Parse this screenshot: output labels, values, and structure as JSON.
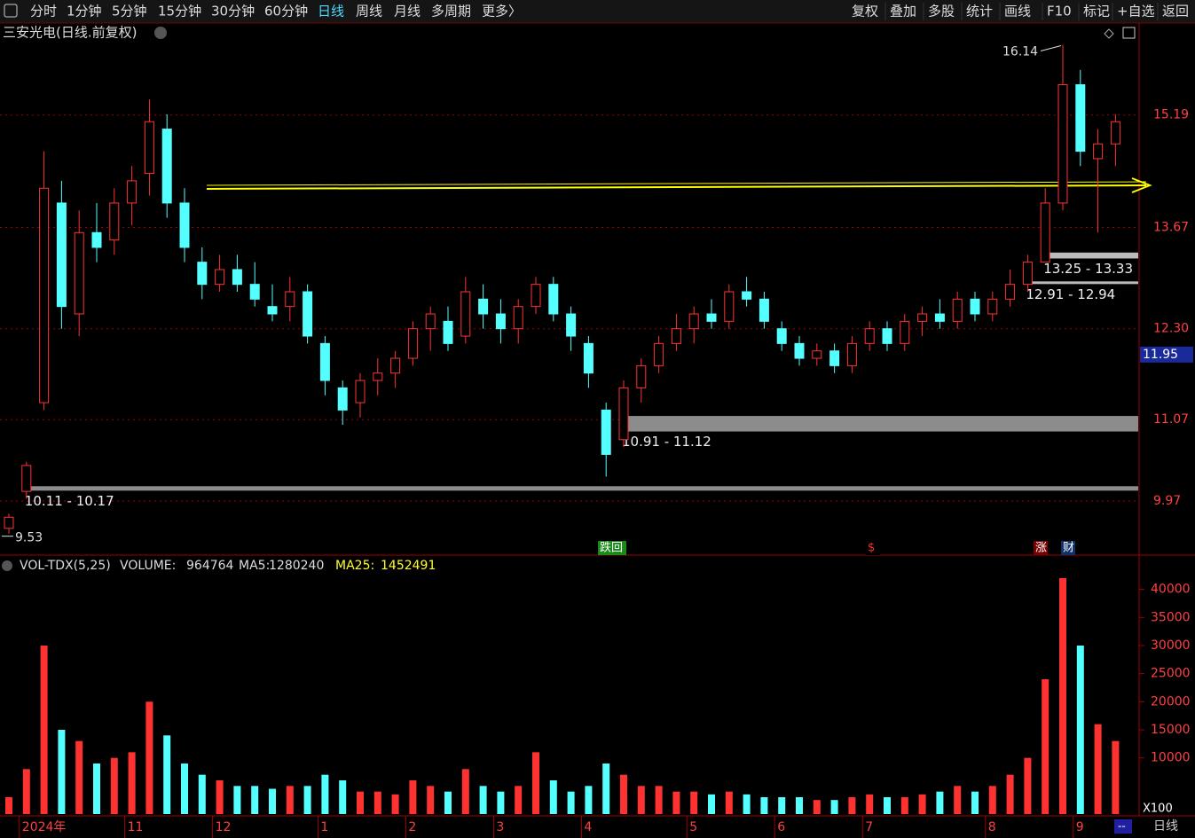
{
  "toolbar": {
    "left": [
      "分时",
      "1分钟",
      "5分钟",
      "15分钟",
      "30分钟",
      "60分钟",
      "日线",
      "周线",
      "月线",
      "多周期",
      "更多〉"
    ],
    "right": [
      "复权",
      "叠加",
      "多股",
      "统计",
      "画线",
      "F10",
      "标记",
      "+自选",
      "返回"
    ]
  },
  "footer": {
    "period": "日线",
    "scroll": "--"
  },
  "chart_data": [
    {
      "type": "candlestick",
      "title": "三安光电(日线.前复权)",
      "categories": [
        null,
        "2024年",
        null,
        null,
        null,
        null,
        null,
        "11",
        null,
        null,
        null,
        null,
        "12",
        null,
        null,
        null,
        null,
        null,
        "1",
        null,
        null,
        null,
        null,
        "2",
        null,
        null,
        null,
        null,
        "3",
        null,
        null,
        null,
        null,
        "4",
        null,
        null,
        null,
        null,
        null,
        "5",
        null,
        null,
        null,
        null,
        "6",
        null,
        null,
        null,
        null,
        "7",
        null,
        null,
        null,
        null,
        null,
        null,
        "8",
        null,
        null,
        null,
        null,
        "9",
        null,
        null
      ],
      "ohlc": [
        [
          9.6,
          9.8,
          9.53,
          9.75
        ],
        [
          10.1,
          10.5,
          10.0,
          10.45
        ],
        [
          11.3,
          14.7,
          11.2,
          14.2
        ],
        [
          14.0,
          14.3,
          12.3,
          12.6
        ],
        [
          12.5,
          13.9,
          12.2,
          13.6
        ],
        [
          13.6,
          14.0,
          13.2,
          13.4
        ],
        [
          13.5,
          14.2,
          13.3,
          14.0
        ],
        [
          14.0,
          14.5,
          13.7,
          14.3
        ],
        [
          14.4,
          15.4,
          14.1,
          15.1
        ],
        [
          15.0,
          15.2,
          13.8,
          14.0
        ],
        [
          14.0,
          14.2,
          13.2,
          13.4
        ],
        [
          13.2,
          13.4,
          12.7,
          12.9
        ],
        [
          12.9,
          13.3,
          12.8,
          13.1
        ],
        [
          13.1,
          13.3,
          12.8,
          12.9
        ],
        [
          12.9,
          13.2,
          12.6,
          12.7
        ],
        [
          12.6,
          12.9,
          12.4,
          12.5
        ],
        [
          12.6,
          13.0,
          12.4,
          12.8
        ],
        [
          12.8,
          12.9,
          12.1,
          12.2
        ],
        [
          12.1,
          12.2,
          11.4,
          11.6
        ],
        [
          11.5,
          11.6,
          11.0,
          11.2
        ],
        [
          11.3,
          11.7,
          11.1,
          11.6
        ],
        [
          11.6,
          11.9,
          11.4,
          11.7
        ],
        [
          11.7,
          12.0,
          11.5,
          11.9
        ],
        [
          11.9,
          12.4,
          11.8,
          12.3
        ],
        [
          12.3,
          12.6,
          12.0,
          12.5
        ],
        [
          12.4,
          12.6,
          12.0,
          12.1
        ],
        [
          12.2,
          13.0,
          12.1,
          12.8
        ],
        [
          12.7,
          12.9,
          12.3,
          12.5
        ],
        [
          12.5,
          12.7,
          12.1,
          12.3
        ],
        [
          12.3,
          12.7,
          12.1,
          12.6
        ],
        [
          12.6,
          13.0,
          12.5,
          12.9
        ],
        [
          12.9,
          13.0,
          12.4,
          12.5
        ],
        [
          12.5,
          12.6,
          12.0,
          12.2
        ],
        [
          12.1,
          12.2,
          11.5,
          11.7
        ],
        [
          11.2,
          11.3,
          10.3,
          10.6
        ],
        [
          10.8,
          11.6,
          10.7,
          11.5
        ],
        [
          11.5,
          11.9,
          11.3,
          11.8
        ],
        [
          11.8,
          12.2,
          11.7,
          12.1
        ],
        [
          12.1,
          12.5,
          12.0,
          12.3
        ],
        [
          12.3,
          12.6,
          12.1,
          12.5
        ],
        [
          12.5,
          12.7,
          12.3,
          12.4
        ],
        [
          12.4,
          12.9,
          12.3,
          12.8
        ],
        [
          12.8,
          13.0,
          12.6,
          12.7
        ],
        [
          12.7,
          12.8,
          12.3,
          12.4
        ],
        [
          12.3,
          12.4,
          12.0,
          12.1
        ],
        [
          12.1,
          12.2,
          11.8,
          11.9
        ],
        [
          11.9,
          12.1,
          11.8,
          12.0
        ],
        [
          12.0,
          12.1,
          11.7,
          11.8
        ],
        [
          11.8,
          12.2,
          11.7,
          12.1
        ],
        [
          12.1,
          12.4,
          12.0,
          12.3
        ],
        [
          12.3,
          12.4,
          12.0,
          12.1
        ],
        [
          12.1,
          12.5,
          12.0,
          12.4
        ],
        [
          12.4,
          12.6,
          12.2,
          12.5
        ],
        [
          12.5,
          12.7,
          12.3,
          12.4
        ],
        [
          12.4,
          12.8,
          12.3,
          12.7
        ],
        [
          12.7,
          12.8,
          12.4,
          12.5
        ],
        [
          12.5,
          12.8,
          12.4,
          12.7
        ],
        [
          12.7,
          13.1,
          12.6,
          12.9
        ],
        [
          12.9,
          13.3,
          12.8,
          13.2
        ],
        [
          13.2,
          14.2,
          13.2,
          14.0
        ],
        [
          14.0,
          16.14,
          13.9,
          15.6
        ],
        [
          15.6,
          15.8,
          14.5,
          14.7
        ],
        [
          14.6,
          15.0,
          13.6,
          14.8
        ],
        [
          14.8,
          15.2,
          14.5,
          15.1
        ]
      ],
      "up_color": "#ff3232",
      "down_color": "#54ffff",
      "ylim": [
        9.25,
        16.41
      ],
      "yticks": [
        9.97,
        11.07,
        {
          "value": 12.3,
          "label": "12.30"
        },
        13.67,
        15.19
      ],
      "price_tag": 11.95,
      "zones": [
        {
          "label": "10.11 - 10.17",
          "low": 10.11,
          "high": 10.17
        },
        {
          "label": "10.91 - 11.12",
          "low": 10.91,
          "high": 11.12
        },
        {
          "label": "12.91 - 12.94",
          "low": 12.91,
          "high": 12.94
        },
        {
          "label": "13.25 - 13.33",
          "low": 13.25,
          "high": 13.33
        }
      ],
      "event_tags": [
        "跌回",
        "$",
        "涨",
        "财"
      ]
    },
    {
      "type": "bar",
      "title": "VOL-TDX(5,25)",
      "stats": [
        {
          "label": "VOLUME:",
          "value": 964764
        },
        {
          "label": "MA5:",
          "value": 1280240
        },
        {
          "label": "MA25:",
          "value": 1452491
        }
      ],
      "values": [
        3000,
        8000,
        30000,
        15000,
        13000,
        9000,
        10000,
        11000,
        20000,
        14000,
        9000,
        7000,
        6000,
        5000,
        5000,
        4500,
        5000,
        5000,
        7000,
        6000,
        4000,
        4000,
        3500,
        6000,
        5000,
        4000,
        8000,
        5000,
        4000,
        5000,
        11000,
        6000,
        4000,
        5000,
        9000,
        7000,
        5000,
        5000,
        4000,
        4000,
        3500,
        4000,
        3500,
        3000,
        3000,
        3000,
        2500,
        2500,
        3000,
        3500,
        3000,
        3000,
        3500,
        4000,
        5000,
        4000,
        5000,
        7000,
        10000,
        24000,
        42000,
        30000,
        16000,
        13000
      ],
      "ylim": [
        0,
        43100
      ],
      "yticks": [
        10000,
        15000,
        20000,
        25000,
        30000,
        35000,
        40000
      ],
      "unit": "X100"
    }
  ]
}
